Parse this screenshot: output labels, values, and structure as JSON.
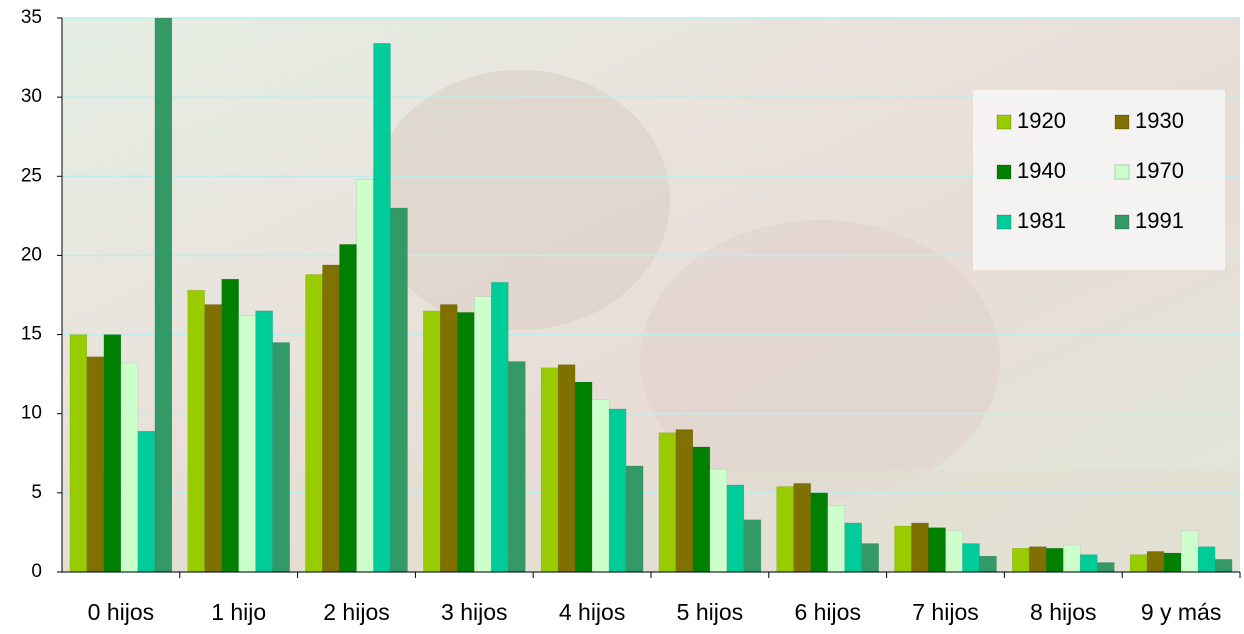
{
  "chart_data": {
    "type": "bar",
    "categories": [
      "0 hijos",
      "1 hijo",
      "2 hijos",
      "3 hijos",
      "4 hijos",
      "5 hijos",
      "6 hijos",
      "7 hijos",
      "8 hijos",
      "9 y más"
    ],
    "series": [
      {
        "name": "1920",
        "color": "#99cc00",
        "values": [
          15,
          17.8,
          18.8,
          16.5,
          12.9,
          8.8,
          5.4,
          2.9,
          1.5,
          1.1
        ]
      },
      {
        "name": "1930",
        "color": "#807000",
        "values": [
          13.6,
          16.9,
          19.4,
          16.9,
          13.1,
          9.0,
          5.6,
          3.1,
          1.6,
          1.3
        ]
      },
      {
        "name": "1940",
        "color": "#008000",
        "values": [
          15,
          18.5,
          20.7,
          16.4,
          12.0,
          7.9,
          5.0,
          2.8,
          1.5,
          1.2
        ]
      },
      {
        "name": "1970",
        "color": "#ccffcc",
        "values": [
          13.2,
          16.2,
          24.8,
          17.4,
          10.9,
          6.5,
          4.2,
          2.6,
          1.7,
          2.6
        ]
      },
      {
        "name": "1981",
        "color": "#00cc99",
        "values": [
          8.9,
          16.5,
          33.4,
          18.3,
          10.3,
          5.5,
          3.1,
          1.8,
          1.1,
          1.6
        ]
      },
      {
        "name": "1991",
        "color": "#339966",
        "values": [
          35,
          14.5,
          23,
          13.3,
          6.7,
          3.3,
          1.8,
          1.0,
          0.6,
          0.8
        ]
      }
    ],
    "ylim": [
      0,
      35
    ],
    "yticks": [
      0,
      5,
      10,
      15,
      20,
      25,
      30,
      35
    ],
    "grid": true,
    "legend": "upper right"
  }
}
